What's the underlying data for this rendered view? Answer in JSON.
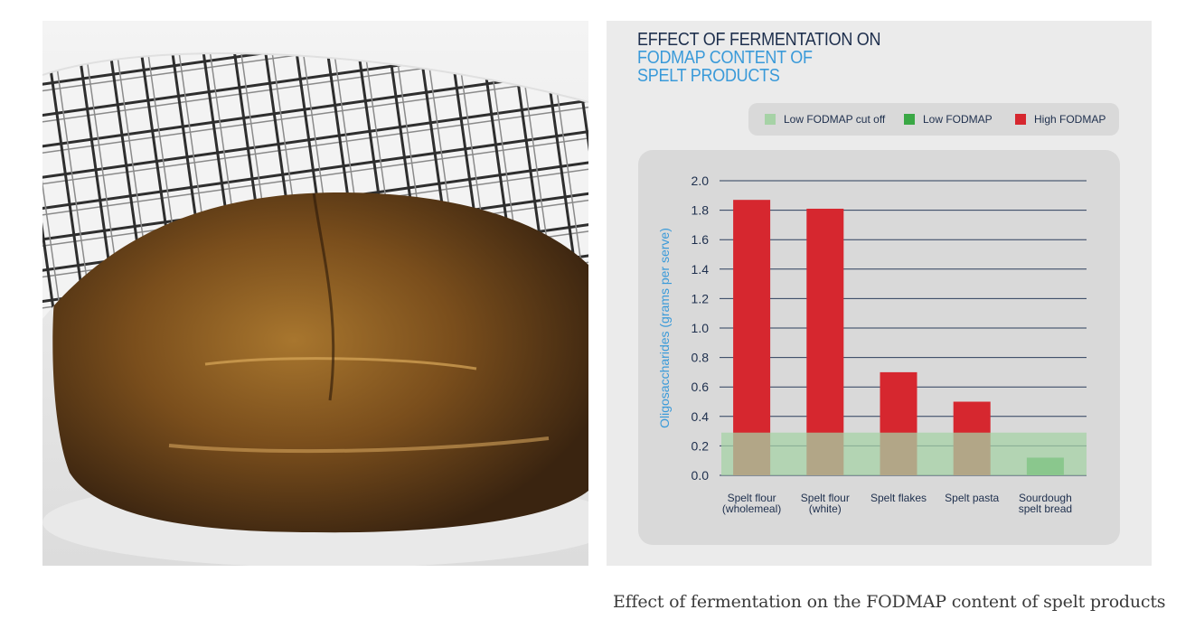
{
  "caption": "Effect of fermentation on the FODMAP content of spelt products",
  "photo": {
    "description": "",
    "icon": "bread-photo"
  },
  "colors": {
    "title_dark": "#1e2f4d",
    "title_blue": "#3a9ad9",
    "high_fodmap": "#d6272f",
    "low_fodmap": "#3aa845",
    "cutoff_band": "#a6d2a6",
    "gridline": "#2c3e5c",
    "axis_label": "#3a9ad9"
  },
  "chart_data": {
    "type": "bar",
    "title_lines": [
      "EFFECT OF FERMENTATION ON",
      "FODMAP CONTENT OF",
      "SPELT PRODUCTS"
    ],
    "ylabel": "Oligosaccharides (grams per serve)",
    "xlabel": "",
    "ylim": [
      0,
      2.0
    ],
    "yticks": [
      "0.0",
      "0.2",
      "0.4",
      "0.6",
      "0.8",
      "1.0",
      "1.2",
      "1.4",
      "1.6",
      "1.8",
      "2.0"
    ],
    "grid": true,
    "categories": [
      [
        "Spelt flour",
        "(wholemeal)"
      ],
      [
        "Spelt flour",
        "(white)"
      ],
      [
        "Spelt flakes"
      ],
      [
        "Spelt pasta"
      ],
      [
        "Sourdough",
        "spelt bread"
      ]
    ],
    "values": [
      1.87,
      1.81,
      0.7,
      0.5,
      0.12
    ],
    "categories_class": [
      "high",
      "high",
      "high",
      "high",
      "low"
    ],
    "cutoff": 0.29,
    "legend": {
      "placement": "top",
      "items": [
        {
          "label": "Low FODMAP cut off",
          "key": "cutoff"
        },
        {
          "label": "Low FODMAP",
          "key": "low"
        },
        {
          "label": "High FODMAP",
          "key": "high"
        }
      ]
    }
  }
}
